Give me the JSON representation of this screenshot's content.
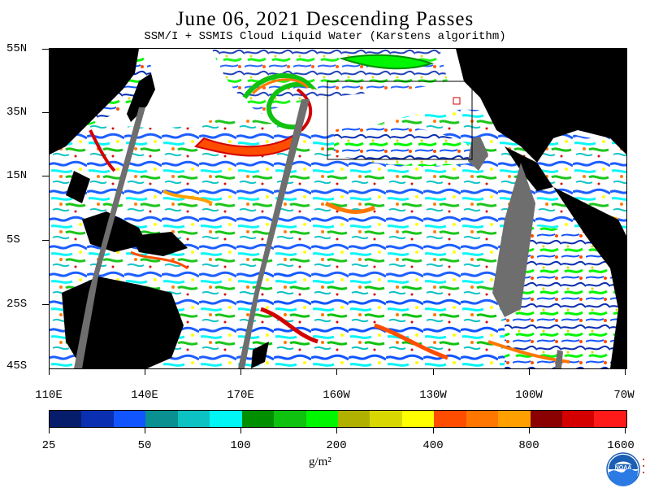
{
  "header": {
    "title": "June 06, 2021  Descending Passes",
    "subtitle": "SSM/I + SSMIS Cloud Liquid Water (Karstens algorithm)"
  },
  "map": {
    "lat_labels": [
      "55N",
      "35N",
      "15N",
      "5S",
      "25S",
      "45S"
    ],
    "lon_labels": [
      "110E",
      "140E",
      "170E",
      "160W",
      "130W",
      "100W",
      "70W"
    ],
    "colors": {
      "land": "#000000",
      "no_data_swath": "#6e6e6e",
      "clear": "#ffffff",
      "box_outline": "#000000",
      "small_box": "#cc0000"
    }
  },
  "colorbar": {
    "colors": [
      "#061d6b",
      "#0a2fb0",
      "#1155ff",
      "#0a9090",
      "#0cc2c2",
      "#00f5f5",
      "#008f00",
      "#10c210",
      "#00f500",
      "#b0b000",
      "#d8d800",
      "#ffff00",
      "#ff4d00",
      "#ff7700",
      "#ff9f00",
      "#8b0000",
      "#d40000",
      "#ff1a1a"
    ],
    "labels": [
      "25",
      "50",
      "100",
      "200",
      "400",
      "800",
      "1600"
    ],
    "unit": "g/m²"
  },
  "logo": {
    "text": "NOAA",
    "icon": "noaa-logo-icon"
  }
}
